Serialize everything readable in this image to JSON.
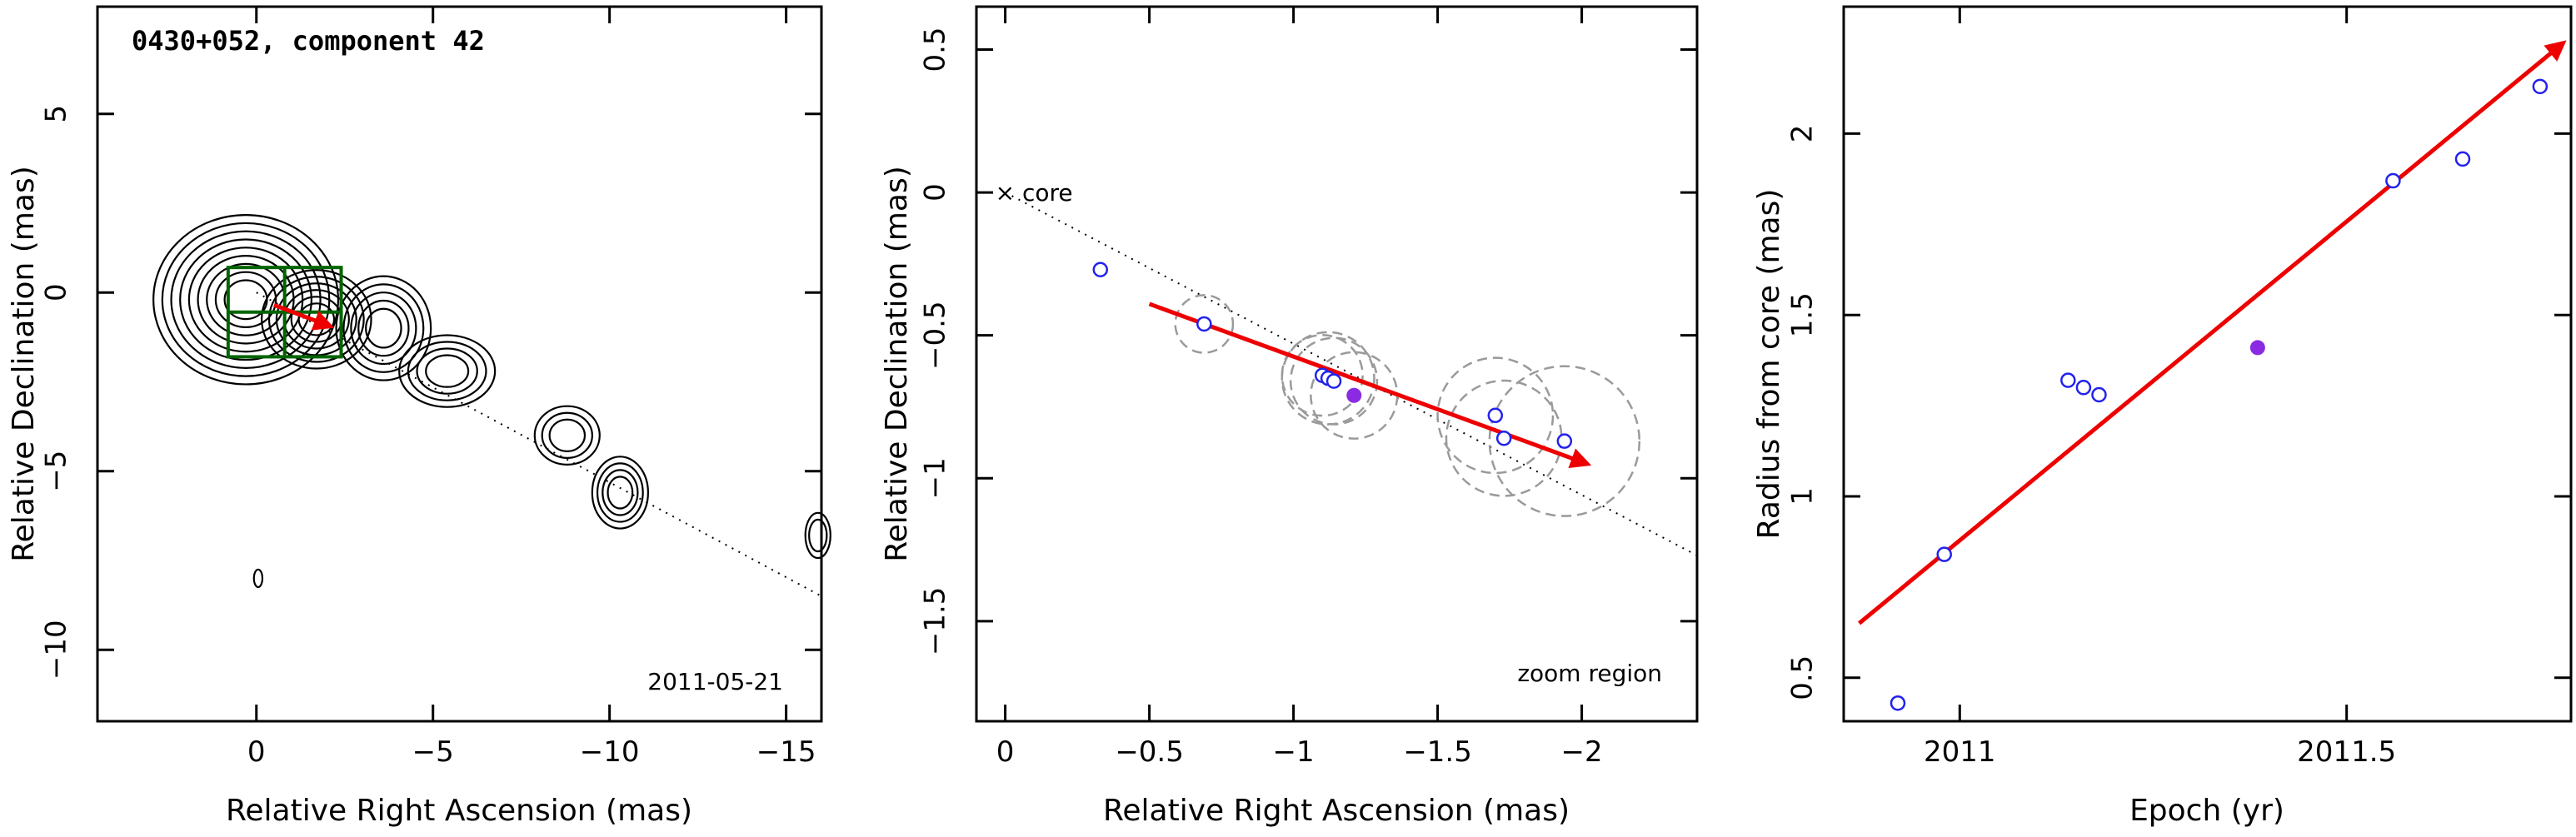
{
  "chart_data": [
    {
      "type": "contour",
      "title": "0430+052, component 42",
      "date_label": "2011-05-21",
      "xlabel": "Relative Right Ascension (mas)",
      "ylabel": "Relative Declination (mas)",
      "xlim": [
        4.5,
        -16
      ],
      "ylim": [
        -12,
        8
      ],
      "xticks": [
        0,
        -5,
        -10,
        -15
      ],
      "yticks": [
        5,
        0,
        -5,
        -10
      ],
      "contour_groups": [
        {
          "cx": 0.3,
          "cy": -0.2,
          "rx": 0.6,
          "ry": 0.55,
          "levels": 9
        },
        {
          "cx": -1.7,
          "cy": -0.75,
          "rx": 0.5,
          "ry": 0.45,
          "levels": 6
        },
        {
          "cx": -3.6,
          "cy": -1.0,
          "rx": 0.5,
          "ry": 0.55,
          "levels": 5
        },
        {
          "cx": -5.4,
          "cy": -2.2,
          "rx": 0.6,
          "ry": 0.45,
          "levels": 4
        },
        {
          "cx": -8.8,
          "cy": -4.0,
          "rx": 0.5,
          "ry": 0.45,
          "levels": 3
        },
        {
          "cx": -10.3,
          "cy": -5.6,
          "rx": 0.35,
          "ry": 0.45,
          "levels": 4
        },
        {
          "cx": -15.9,
          "cy": -6.8,
          "rx": 0.25,
          "ry": 0.45,
          "levels": 2
        },
        {
          "cx": -0.05,
          "cy": -8.0,
          "rx": 0.12,
          "ry": 0.25,
          "levels": 1
        }
      ],
      "zoom_box": {
        "x0": 0.8,
        "x1": -2.4,
        "y0": -1.8,
        "y1": 0.7
      },
      "track_line": {
        "x0": 0,
        "y0": 0,
        "x1": -16,
        "y1": -8.5
      },
      "arrow": {
        "x0": -0.5,
        "y0": -0.35,
        "x1": -2.1,
        "y1": -0.95
      }
    },
    {
      "type": "scatter",
      "xlabel": "Relative Right Ascension (mas)",
      "ylabel": "Relative Declination (mas)",
      "core_label": "core",
      "region_label": "zoom region",
      "xlim": [
        0.1,
        -2.4
      ],
      "ylim": [
        -1.85,
        0.65
      ],
      "xticks": [
        0,
        -0.5,
        -1,
        -1.5,
        -2
      ],
      "xtick_labels": [
        "0",
        "−0.5",
        "−1",
        "−1.5",
        "−2"
      ],
      "yticks": [
        0.5,
        0,
        -0.5,
        -1,
        -1.5
      ],
      "ytick_labels": [
        "0.5",
        "0",
        "−0.5",
        "−1",
        "−1.5"
      ],
      "track_line": {
        "x0": 0,
        "y0": 0,
        "x1": -2.4,
        "y1": -1.27
      },
      "arrow": {
        "x0": -0.5,
        "y0": -0.39,
        "x1": -2.02,
        "y1": -0.95
      },
      "points": [
        {
          "x": -0.33,
          "y": -0.27,
          "r": 0
        },
        {
          "x": -0.69,
          "y": -0.46,
          "r": 0.1
        },
        {
          "x": -1.1,
          "y": -0.64,
          "r": 0.14
        },
        {
          "x": -1.12,
          "y": -0.65,
          "r": 0.16
        },
        {
          "x": -1.14,
          "y": -0.66,
          "r": 0.15
        },
        {
          "x": -1.7,
          "y": -0.78,
          "r": 0.2
        },
        {
          "x": -1.73,
          "y": -0.86,
          "r": 0.2
        },
        {
          "x": -1.94,
          "y": -0.87,
          "r": 0.26
        }
      ],
      "highlight": {
        "x": -1.21,
        "y": -0.71,
        "r": 0.15
      }
    },
    {
      "type": "scatter",
      "xlabel": "Epoch (yr)",
      "ylabel": "Radius from core (mas)",
      "xlim": [
        2010.85,
        2011.79
      ],
      "ylim": [
        0.38,
        2.35
      ],
      "xticks": [
        2011,
        2011.5
      ],
      "xtick_labels": [
        "2011",
        "2011.5"
      ],
      "yticks": [
        0.5,
        1,
        1.5,
        2
      ],
      "ytick_labels": [
        "0.5",
        "1",
        "1.5",
        "2"
      ],
      "arrow": {
        "x0": 2010.87,
        "y0": 0.65,
        "x1": 2011.78,
        "y1": 2.25
      },
      "points": [
        {
          "x": 2010.92,
          "y": 0.43
        },
        {
          "x": 2010.98,
          "y": 0.84
        },
        {
          "x": 2011.14,
          "y": 1.32
        },
        {
          "x": 2011.16,
          "y": 1.3
        },
        {
          "x": 2011.18,
          "y": 1.28
        },
        {
          "x": 2011.56,
          "y": 1.87
        },
        {
          "x": 2011.65,
          "y": 1.93
        },
        {
          "x": 2011.75,
          "y": 2.13
        }
      ],
      "highlight": {
        "x": 2011.385,
        "y": 1.41
      }
    }
  ],
  "colors": {
    "arrow": "#ee0000",
    "points": "#2222ee",
    "highlight": "#8a2be2",
    "zoom_box": "#006400",
    "circles": "#9a9a9a",
    "contour": "#000000"
  }
}
